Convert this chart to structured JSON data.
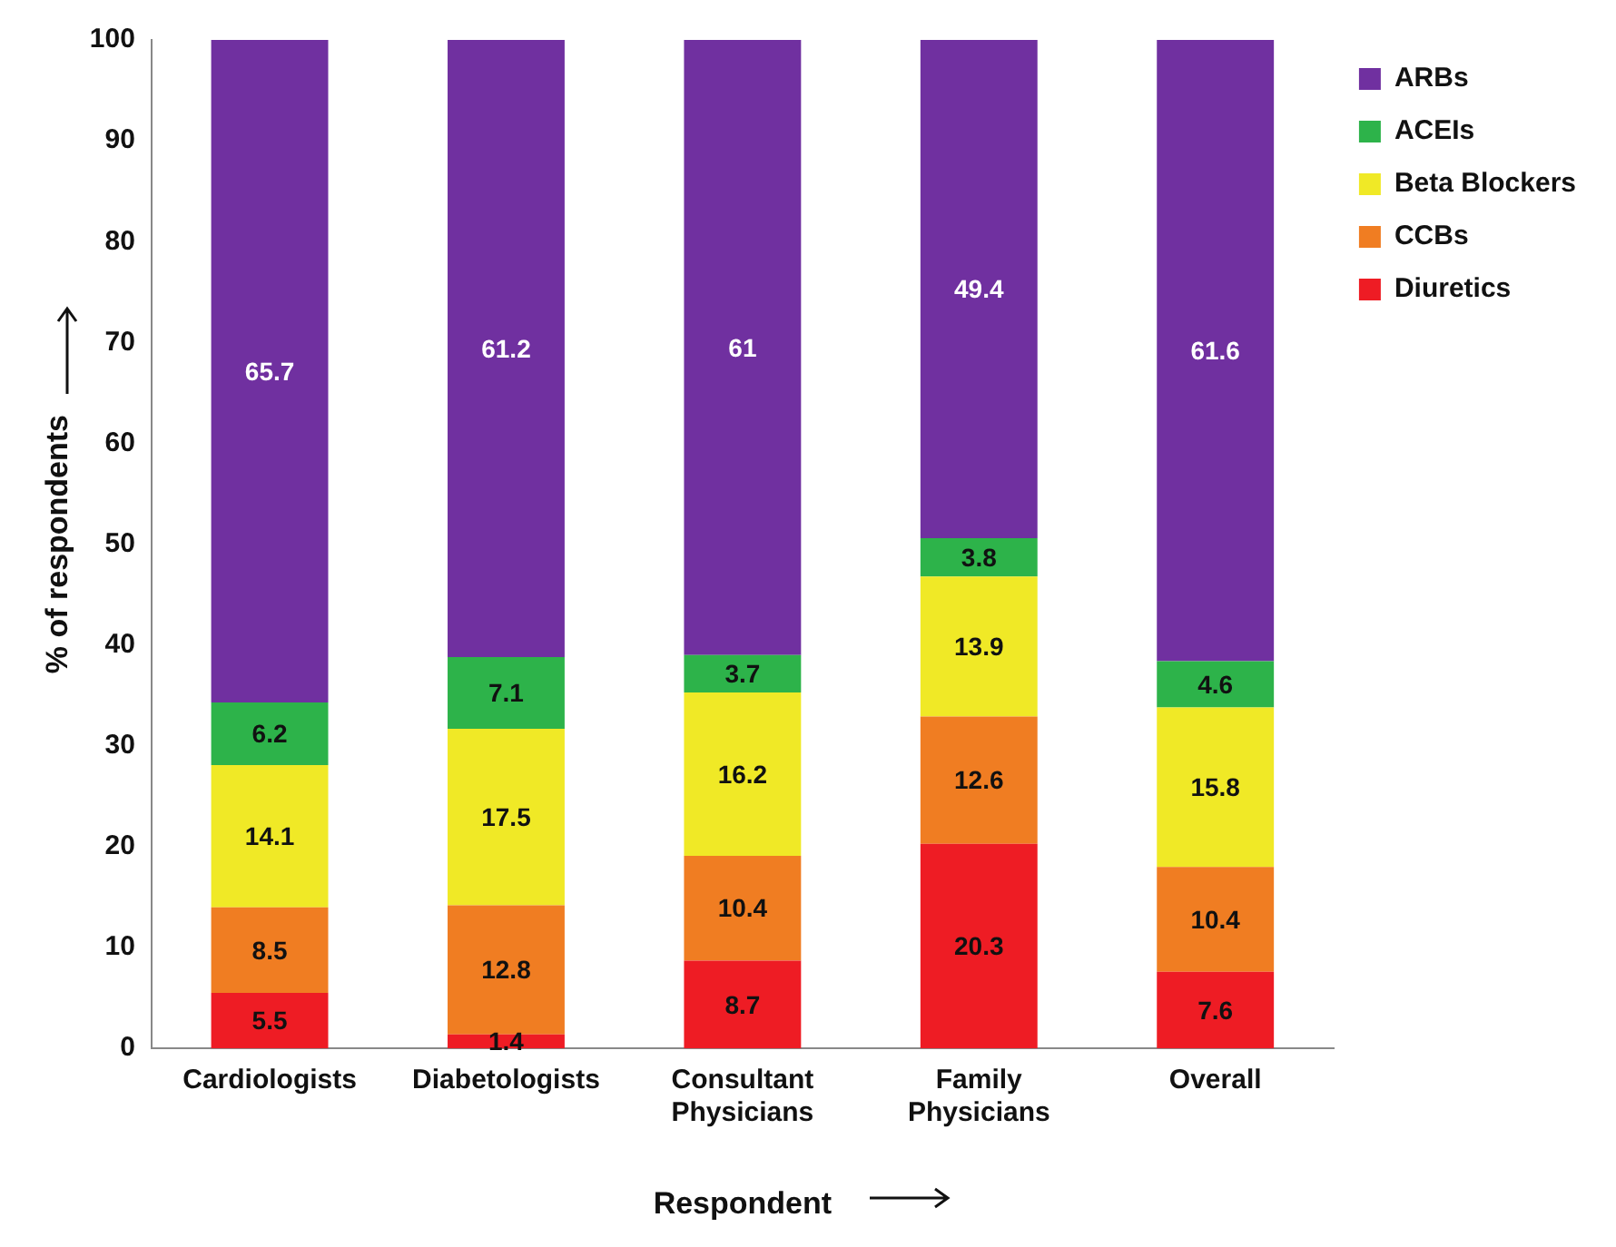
{
  "chart_data": {
    "type": "bar",
    "stacked": true,
    "xlabel": "Respondent",
    "ylabel": "% of respondents",
    "categories": [
      "Cardiologists",
      "Diabetologists",
      "Consultant Physicians",
      "Family Physicians",
      "Overall"
    ],
    "series": [
      {
        "name": "Diuretics",
        "color": "#ee1c24",
        "values": [
          5.5,
          1.4,
          8.7,
          20.3,
          7.6
        ]
      },
      {
        "name": "CCBs",
        "color": "#f07d22",
        "values": [
          8.5,
          12.8,
          10.4,
          12.6,
          10.4
        ]
      },
      {
        "name": "Beta Blockers",
        "color": "#f0e926",
        "values": [
          14.1,
          17.5,
          16.2,
          13.9,
          15.8
        ]
      },
      {
        "name": "ACEIs",
        "color": "#2db34a",
        "values": [
          6.2,
          7.1,
          3.7,
          3.8,
          4.6
        ]
      },
      {
        "name": "ARBs",
        "color": "#7030a0",
        "values": [
          65.7,
          61.2,
          61,
          49.4,
          61.6
        ]
      }
    ],
    "ylim": [
      0,
      100
    ],
    "yticks": [
      0,
      10,
      20,
      30,
      40,
      50,
      60,
      70,
      80,
      90,
      100
    ],
    "grid": false,
    "legend": "top right",
    "data_labels": true
  }
}
